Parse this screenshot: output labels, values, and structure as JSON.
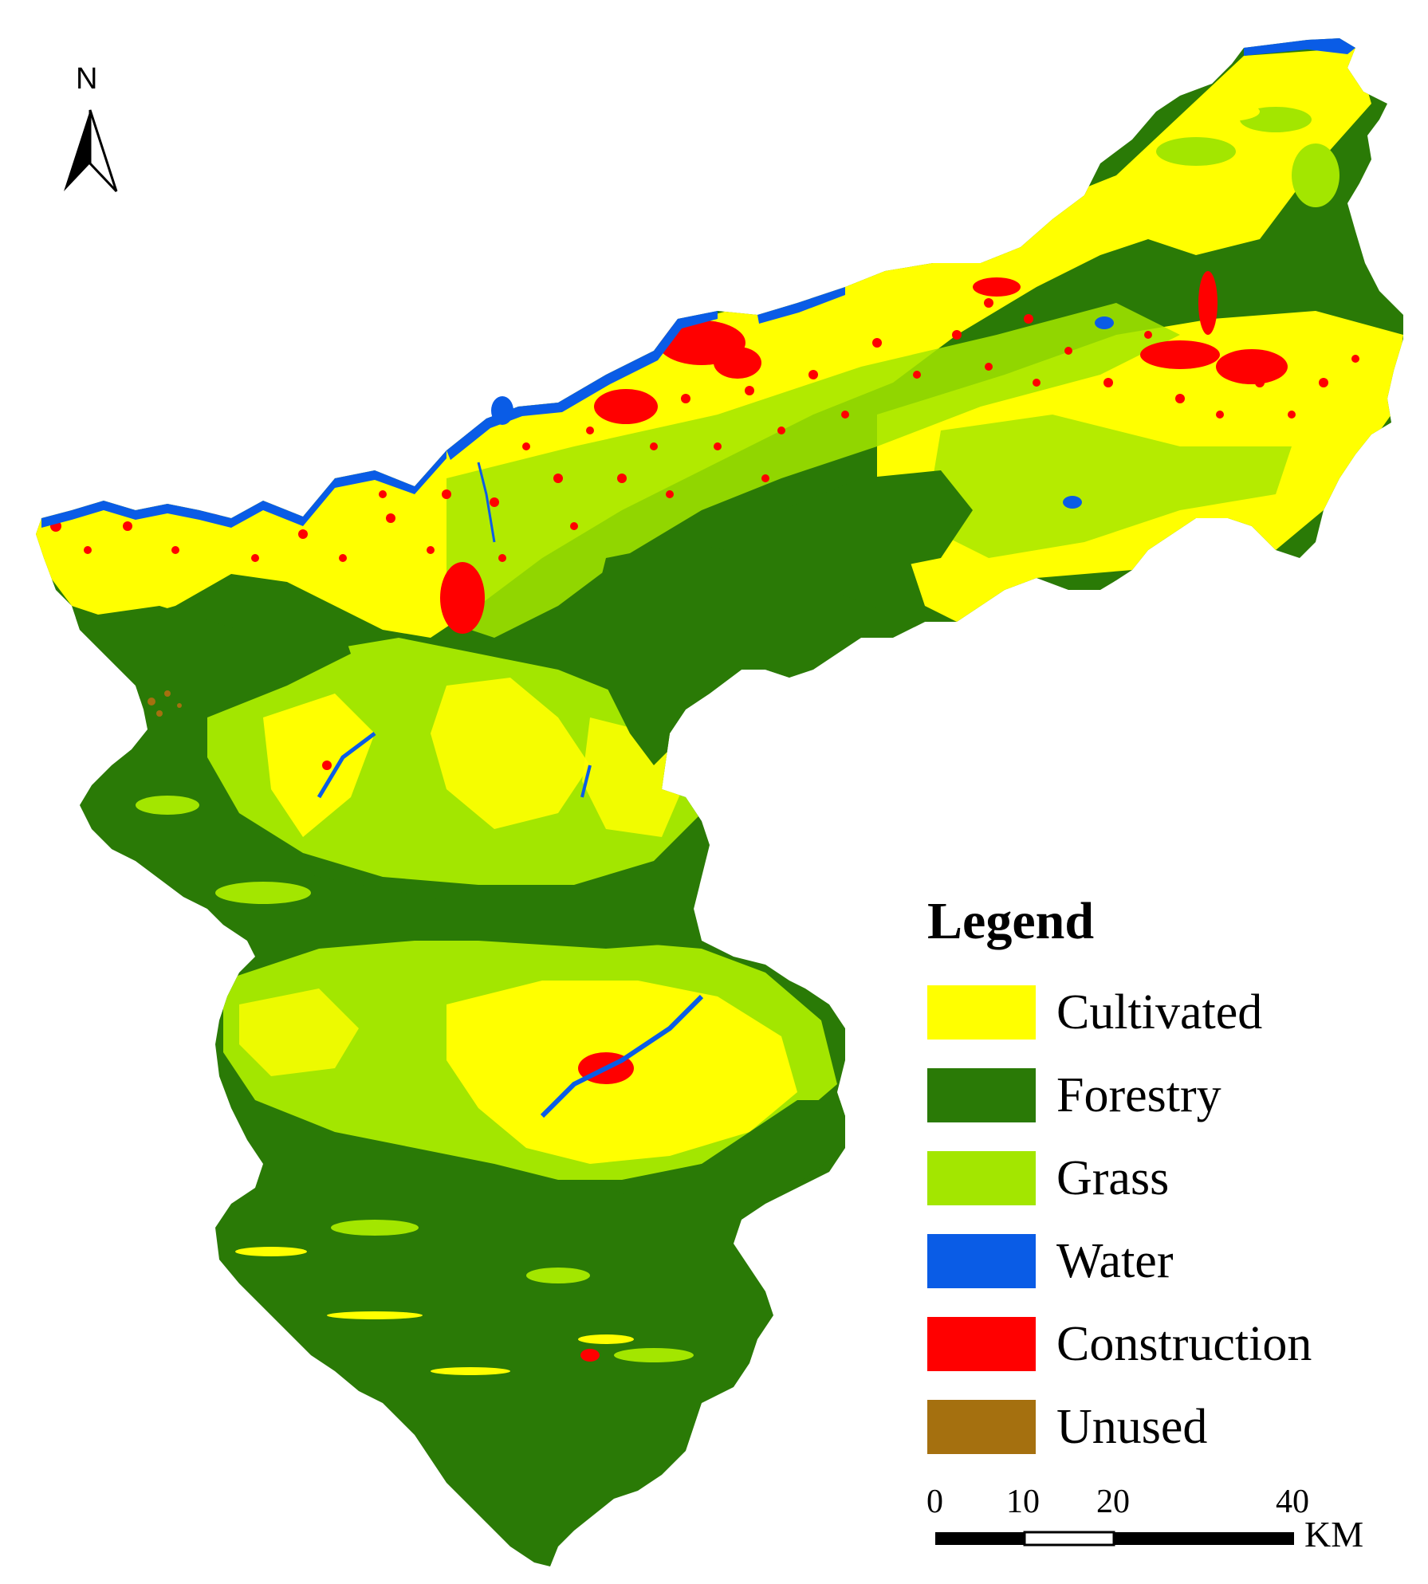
{
  "north_arrow": {
    "letter": "N"
  },
  "legend": {
    "title": "Legend",
    "items": [
      {
        "label": "Cultivated",
        "color": "#ffff00"
      },
      {
        "label": "Forestry",
        "color": "#2a7a06"
      },
      {
        "label": "Grass",
        "color": "#a3e600"
      },
      {
        "label": "Water",
        "color": "#0a5ce6"
      },
      {
        "label": "Construction",
        "color": "#ff0000"
      },
      {
        "label": "Unused",
        "color": "#a5700f"
      }
    ]
  },
  "scale_bar": {
    "labels": [
      "0",
      "10",
      "20",
      "40"
    ],
    "unit": "KM"
  }
}
